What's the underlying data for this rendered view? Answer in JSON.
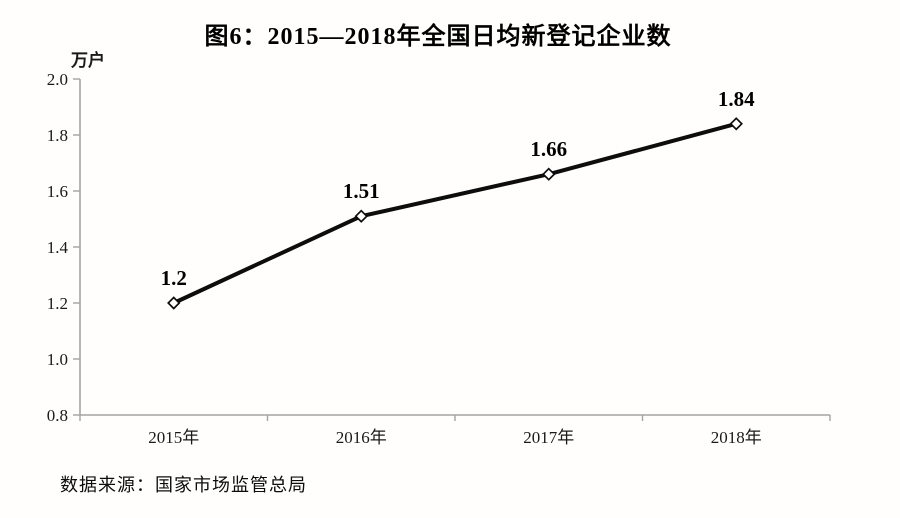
{
  "page": {
    "source": "数据来源：国家市场监管总局"
  },
  "chart_data": {
    "type": "line",
    "title": "图6：2015—2018年全国日均新登记企业数",
    "y_unit": "万户",
    "categories": [
      "2015年",
      "2016年",
      "2017年",
      "2018年"
    ],
    "series": [
      {
        "name": "全国日均新登记企业数",
        "values": [
          1.2,
          1.51,
          1.66,
          1.84
        ]
      }
    ],
    "data_labels": [
      "1.2",
      "1.51",
      "1.66",
      "1.84"
    ],
    "ylim": [
      0.8,
      2.0
    ],
    "ytick_labels": [
      "2.0",
      "1.8",
      "1.6",
      "1.4",
      "1.2",
      "1.0",
      "0.8"
    ],
    "yticks": [
      2.0,
      1.8,
      1.6,
      1.4,
      1.2,
      1.0,
      0.8
    ],
    "grid": false,
    "legend_position": "none",
    "marker": "open-diamond",
    "colors": {
      "line": "#0d0d0d",
      "marker_fill": "#ffffff",
      "marker_stroke": "#0d0d0d",
      "axis": "#a3a3a3",
      "title": "#000000",
      "text": "#1a1a1a"
    }
  }
}
